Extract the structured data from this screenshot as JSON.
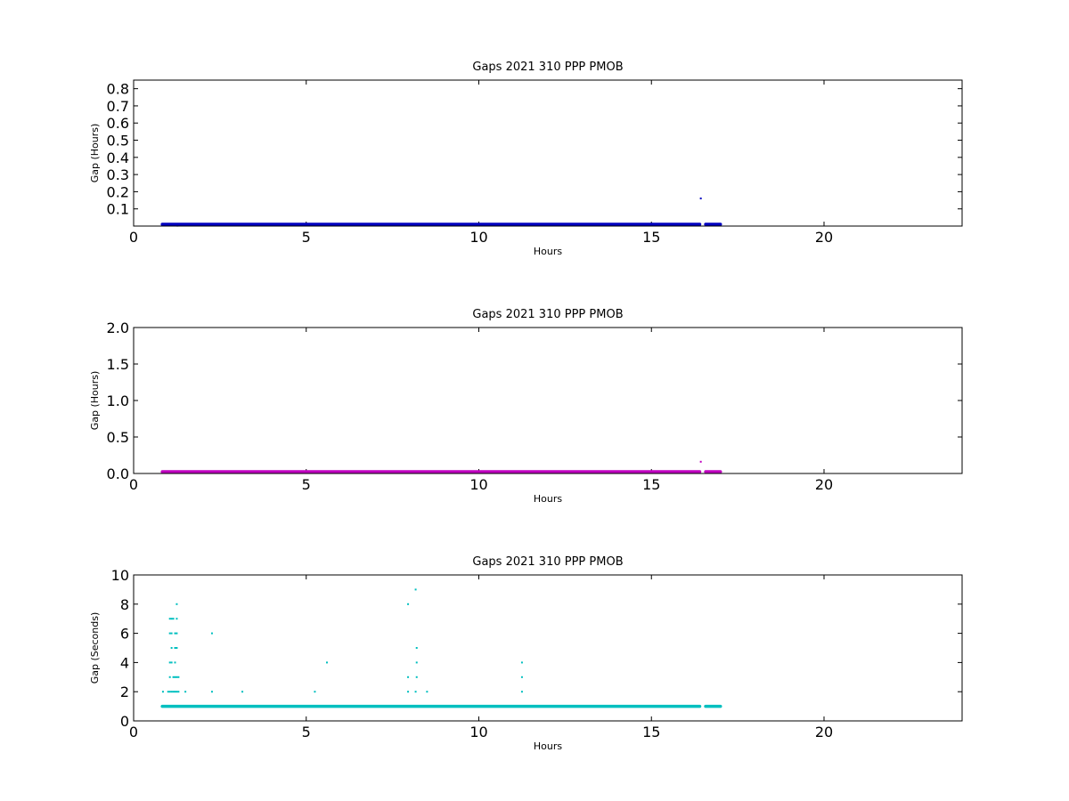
{
  "chart_data": [
    {
      "type": "scatter",
      "title": "Gaps 2021 310 PPP  PMOB",
      "xlabel": "Hours",
      "ylabel": "Gap (Hours)",
      "xlim": [
        0,
        24
      ],
      "ylim": [
        0,
        0.85
      ],
      "xticks": [
        0,
        5,
        10,
        15,
        20
      ],
      "xtick_labels": [
        "0",
        "5",
        "10",
        "15",
        "20"
      ],
      "yticks": [
        0.1,
        0.2,
        0.3,
        0.4,
        0.5,
        0.6,
        0.7,
        0.8
      ],
      "ytick_labels": [
        "0.1",
        "0.2",
        "0.3",
        "0.4",
        "0.5",
        "0.6",
        "0.7",
        "0.8"
      ],
      "grid": false,
      "color": "#0000bf",
      "series": [
        {
          "segments": [
            [
              0.83,
              16.4,
              0.0003
            ],
            [
              16.57,
              17.0,
              0.0003
            ]
          ],
          "points": [
            [
              1.27,
              0.0022
            ],
            [
              16.43,
              0.161
            ]
          ]
        }
      ]
    },
    {
      "type": "scatter",
      "title": "Gaps 2021 310 PPP  PMOB",
      "xlabel": "Hours",
      "ylabel": "Gap (Hours)",
      "xlim": [
        0,
        24
      ],
      "ylim": [
        0,
        2.0
      ],
      "xticks": [
        0,
        5,
        10,
        15,
        20
      ],
      "xtick_labels": [
        "0",
        "5",
        "10",
        "15",
        "20"
      ],
      "yticks": [
        0.0,
        0.5,
        1.0,
        1.5,
        2.0
      ],
      "ytick_labels": [
        "0.0",
        "0.5",
        "1.0",
        "1.5",
        "2.0"
      ],
      "grid": false,
      "color": "#bf00bf",
      "series": [
        {
          "segments": [
            [
              0.83,
              16.4,
              0.0003
            ],
            [
              16.57,
              17.0,
              0.0003
            ]
          ],
          "points": [
            [
              16.43,
              0.161
            ]
          ]
        }
      ]
    },
    {
      "type": "scatter",
      "title": "Gaps 2021 310 PPP  PMOB",
      "xlabel": "Hours",
      "ylabel": "Gap (Seconds)",
      "xlim": [
        0,
        24
      ],
      "ylim": [
        0,
        10
      ],
      "xticks": [
        0,
        5,
        10,
        15,
        20
      ],
      "xtick_labels": [
        "0",
        "5",
        "10",
        "15",
        "20"
      ],
      "yticks": [
        0,
        2,
        4,
        6,
        8,
        10
      ],
      "ytick_labels": [
        "0",
        "2",
        "4",
        "6",
        "8",
        "10"
      ],
      "grid": false,
      "color": "#00bfbf",
      "series": [
        {
          "segments": [
            [
              0.83,
              16.4,
              1
            ],
            [
              16.57,
              17.0,
              1
            ]
          ],
          "points": [
            [
              0.85,
              2
            ],
            [
              1.0,
              2
            ],
            [
              1.05,
              2
            ],
            [
              1.1,
              2
            ],
            [
              1.15,
              2
            ],
            [
              1.2,
              2
            ],
            [
              1.25,
              2
            ],
            [
              1.3,
              2
            ],
            [
              1.5,
              2
            ],
            [
              1.05,
              3
            ],
            [
              1.15,
              3
            ],
            [
              1.2,
              3
            ],
            [
              1.25,
              3
            ],
            [
              1.3,
              3
            ],
            [
              1.05,
              4
            ],
            [
              1.1,
              4
            ],
            [
              1.2,
              4
            ],
            [
              1.1,
              5
            ],
            [
              1.2,
              5
            ],
            [
              1.25,
              5
            ],
            [
              1.05,
              6
            ],
            [
              1.1,
              6
            ],
            [
              1.2,
              6
            ],
            [
              1.25,
              6
            ],
            [
              1.05,
              7
            ],
            [
              1.1,
              7
            ],
            [
              1.15,
              7
            ],
            [
              1.25,
              7
            ],
            [
              1.25,
              8
            ],
            [
              2.27,
              2
            ],
            [
              2.27,
              6
            ],
            [
              3.15,
              2
            ],
            [
              5.25,
              2
            ],
            [
              5.6,
              4
            ],
            [
              7.95,
              2
            ],
            [
              7.95,
              3
            ],
            [
              7.95,
              8
            ],
            [
              8.17,
              2
            ],
            [
              8.2,
              3
            ],
            [
              8.2,
              4
            ],
            [
              8.2,
              5
            ],
            [
              8.17,
              9
            ],
            [
              8.5,
              2
            ],
            [
              11.25,
              2
            ],
            [
              11.25,
              3
            ],
            [
              11.25,
              4
            ]
          ]
        }
      ]
    }
  ]
}
